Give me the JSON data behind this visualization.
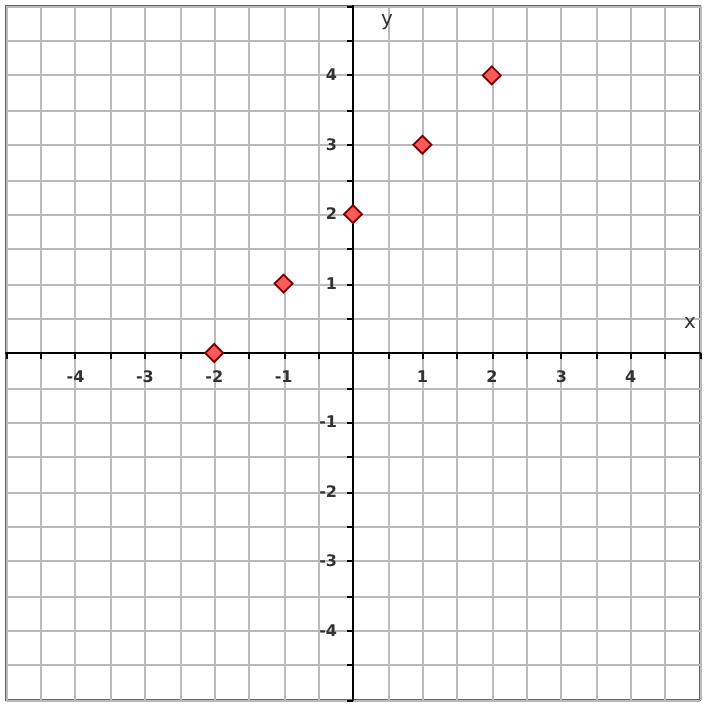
{
  "chart_data": {
    "type": "scatter",
    "xlabel": "x",
    "ylabel": "y",
    "x": [
      -2,
      -1,
      0,
      1,
      2
    ],
    "series": [
      {
        "color": "#ff5a5a",
        "values": [
          0,
          1,
          2,
          3,
          4
        ]
      }
    ],
    "marker": "diamond",
    "grid": true,
    "xlim": [
      -5,
      5
    ],
    "ylim": [
      -5,
      5
    ],
    "xticks": [
      {
        "value": -5,
        "label": null
      },
      {
        "value": -4.5,
        "label": null
      },
      -4,
      {
        "value": -3.5,
        "label": null
      },
      -3,
      {
        "value": -2.5,
        "label": null
      },
      -2,
      {
        "value": -1.5,
        "label": null
      },
      -1,
      {
        "value": -0.5,
        "label": null
      },
      {
        "value": 0,
        "label": null
      },
      {
        "value": 0.5,
        "label": null
      },
      1,
      {
        "value": 1.5,
        "label": null
      },
      2,
      {
        "value": 2.5,
        "label": null
      },
      3,
      {
        "value": 3.5,
        "label": null
      },
      4,
      {
        "value": 4.5,
        "label": null
      },
      {
        "value": 5,
        "label": null
      }
    ],
    "yticks": [
      {
        "value": -5,
        "label": null
      },
      {
        "value": -4.5,
        "label": null
      },
      -4,
      {
        "value": -3.5,
        "label": null
      },
      -3,
      {
        "value": -2.5,
        "label": null
      },
      -2,
      {
        "value": -1.5,
        "label": null
      },
      -1,
      {
        "value": -0.5,
        "label": null
      },
      {
        "value": 0,
        "label": null
      },
      {
        "value": 0.5,
        "label": null
      },
      1,
      {
        "value": 1.5,
        "label": null
      },
      2,
      {
        "value": 2.5,
        "label": null
      },
      3,
      {
        "value": 3.5,
        "label": null
      },
      4,
      {
        "value": 4.5,
        "label": null
      },
      {
        "value": 5,
        "label": null
      }
    ]
  }
}
